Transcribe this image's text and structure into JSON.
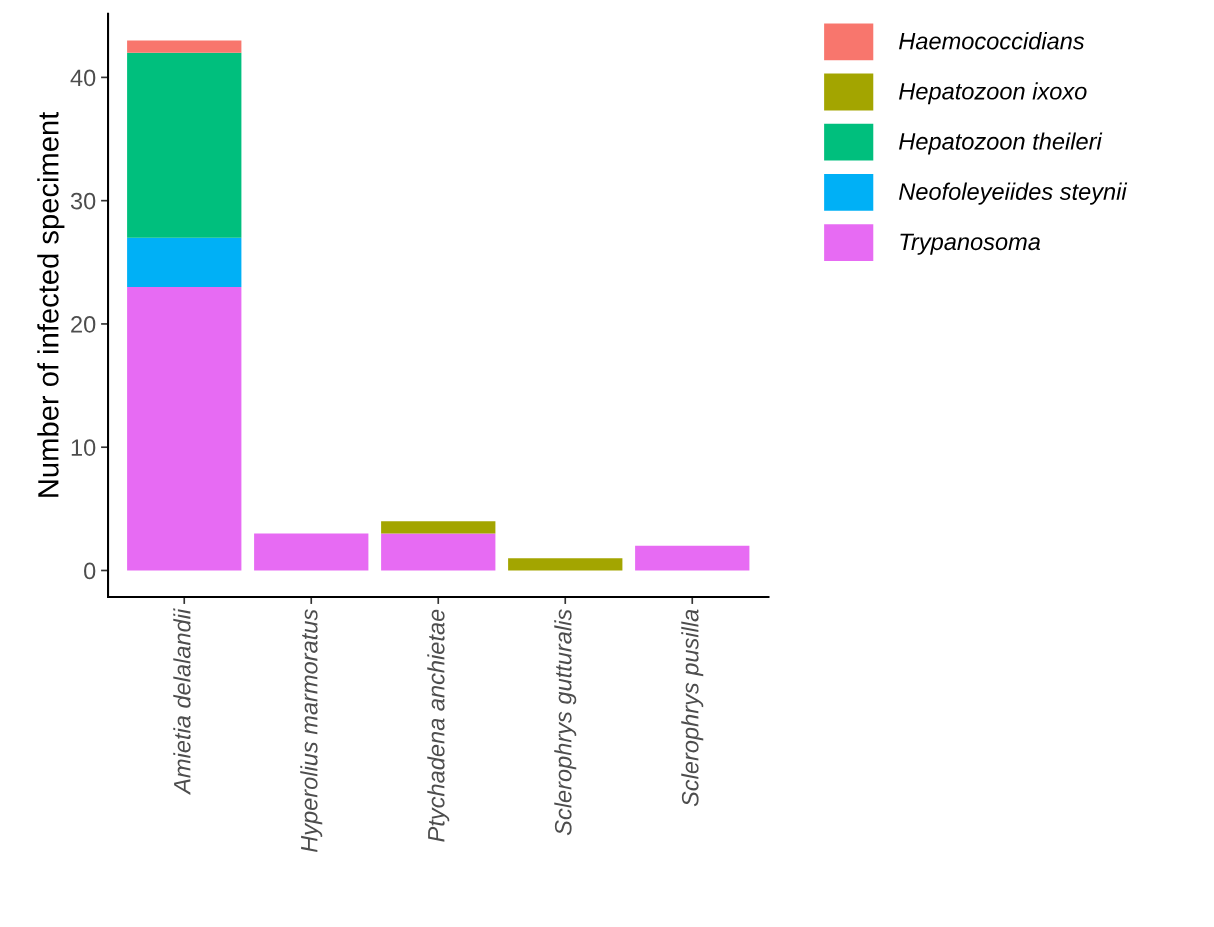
{
  "chart_data": {
    "type": "bar",
    "stacked": true,
    "ylabel": "Number of infected speciment",
    "categories": [
      "Amietia delalandii",
      "Hyperolius marmoratus",
      "Ptychadena anchietae",
      "Sclerophrys gutturalis",
      "Sclerophrys pusilla"
    ],
    "series": [
      {
        "name": "Trypanosoma",
        "color": "#e76bf3",
        "values": [
          23,
          3,
          3,
          0,
          2
        ]
      },
      {
        "name": "Neofoleyeiides steynii",
        "color": "#00b0f6",
        "values": [
          4,
          0,
          0,
          0,
          0
        ]
      },
      {
        "name": "Hepatozoon theileri",
        "color": "#00bf7d",
        "values": [
          15,
          0,
          0,
          0,
          0
        ]
      },
      {
        "name": "Hepatozoon ixoxo",
        "color": "#a3a500",
        "values": [
          0,
          0,
          1,
          1,
          0
        ]
      },
      {
        "name": "Haemococcidians",
        "color": "#f8766d",
        "values": [
          1,
          0,
          0,
          0,
          0
        ]
      }
    ],
    "ylim": [
      -2.15,
      45.15
    ],
    "yticks": [
      0,
      10,
      20,
      30,
      40
    ],
    "grid": false,
    "legend": "right"
  }
}
